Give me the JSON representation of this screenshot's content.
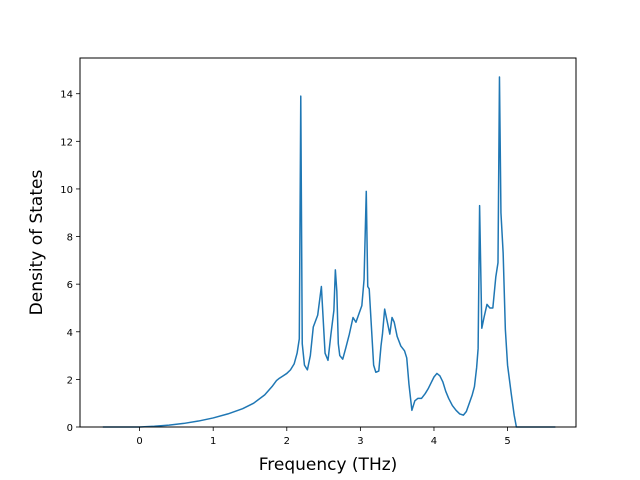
{
  "chart_data": {
    "type": "line",
    "title": "",
    "xlabel": "Frequency (THz)",
    "ylabel": "Density of States",
    "xlim": [
      -0.81,
      5.93
    ],
    "ylim": [
      0,
      15.5
    ],
    "xticks": [
      0,
      1,
      2,
      3,
      4,
      5
    ],
    "xtick_labels": [
      "0",
      "1",
      "2",
      "3",
      "4",
      "5"
    ],
    "yticks": [
      0,
      2,
      4,
      6,
      8,
      10,
      12,
      14
    ],
    "ytick_labels": [
      "0",
      "2",
      "4",
      "6",
      "8",
      "10",
      "12",
      "14"
    ],
    "grid": false,
    "legend": "none",
    "series": [
      {
        "color": "#1f77b4",
        "x": [
          -0.5,
          -0.2,
          0.0,
          0.2,
          0.4,
          0.6,
          0.8,
          1.0,
          1.2,
          1.4,
          1.55,
          1.7,
          1.8,
          1.86,
          1.9,
          1.95,
          2.0,
          2.05,
          2.1,
          2.14,
          2.17,
          2.19,
          2.21,
          2.24,
          2.28,
          2.32,
          2.36,
          2.42,
          2.47,
          2.52,
          2.56,
          2.6,
          2.64,
          2.66,
          2.68,
          2.7,
          2.72,
          2.76,
          2.8,
          2.85,
          2.9,
          2.94,
          2.98,
          3.02,
          3.05,
          3.08,
          3.1,
          3.12,
          3.15,
          3.18,
          3.21,
          3.25,
          3.28,
          3.3,
          3.33,
          3.36,
          3.4,
          3.43,
          3.46,
          3.5,
          3.55,
          3.6,
          3.63,
          3.66,
          3.7,
          3.74,
          3.78,
          3.83,
          3.88,
          3.92,
          3.96,
          4.0,
          4.04,
          4.08,
          4.12,
          4.16,
          4.2,
          4.25,
          4.3,
          4.35,
          4.4,
          4.44,
          4.48,
          4.52,
          4.55,
          4.58,
          4.6,
          4.62,
          4.65,
          4.68,
          4.72,
          4.76,
          4.8,
          4.84,
          4.87,
          4.89,
          4.91,
          4.94,
          4.97,
          5.0,
          5.05,
          5.09,
          5.12,
          5.15,
          5.3,
          5.65
        ],
        "y": [
          0.0,
          0.0,
          0.0,
          0.03,
          0.08,
          0.15,
          0.25,
          0.38,
          0.55,
          0.77,
          1.0,
          1.35,
          1.7,
          1.95,
          2.05,
          2.15,
          2.25,
          2.4,
          2.65,
          3.1,
          3.7,
          13.9,
          3.5,
          2.6,
          2.4,
          3.0,
          4.2,
          4.7,
          5.9,
          3.1,
          2.8,
          3.9,
          4.9,
          6.6,
          5.7,
          3.5,
          3.0,
          2.85,
          3.3,
          3.9,
          4.6,
          4.4,
          4.75,
          5.1,
          6.2,
          9.9,
          5.9,
          5.8,
          4.2,
          2.6,
          2.3,
          2.35,
          3.4,
          3.9,
          4.95,
          4.5,
          3.9,
          4.6,
          4.4,
          3.8,
          3.4,
          3.2,
          2.9,
          1.8,
          0.7,
          1.1,
          1.2,
          1.2,
          1.4,
          1.6,
          1.85,
          2.1,
          2.25,
          2.15,
          1.9,
          1.5,
          1.2,
          0.9,
          0.7,
          0.55,
          0.5,
          0.65,
          1.0,
          1.35,
          1.7,
          2.5,
          3.3,
          9.3,
          4.15,
          4.6,
          5.15,
          5.0,
          5.0,
          6.3,
          6.9,
          14.7,
          9.0,
          7.3,
          4.1,
          2.6,
          1.4,
          0.5,
          0.0,
          0.0,
          0.0,
          0.0
        ]
      }
    ]
  }
}
